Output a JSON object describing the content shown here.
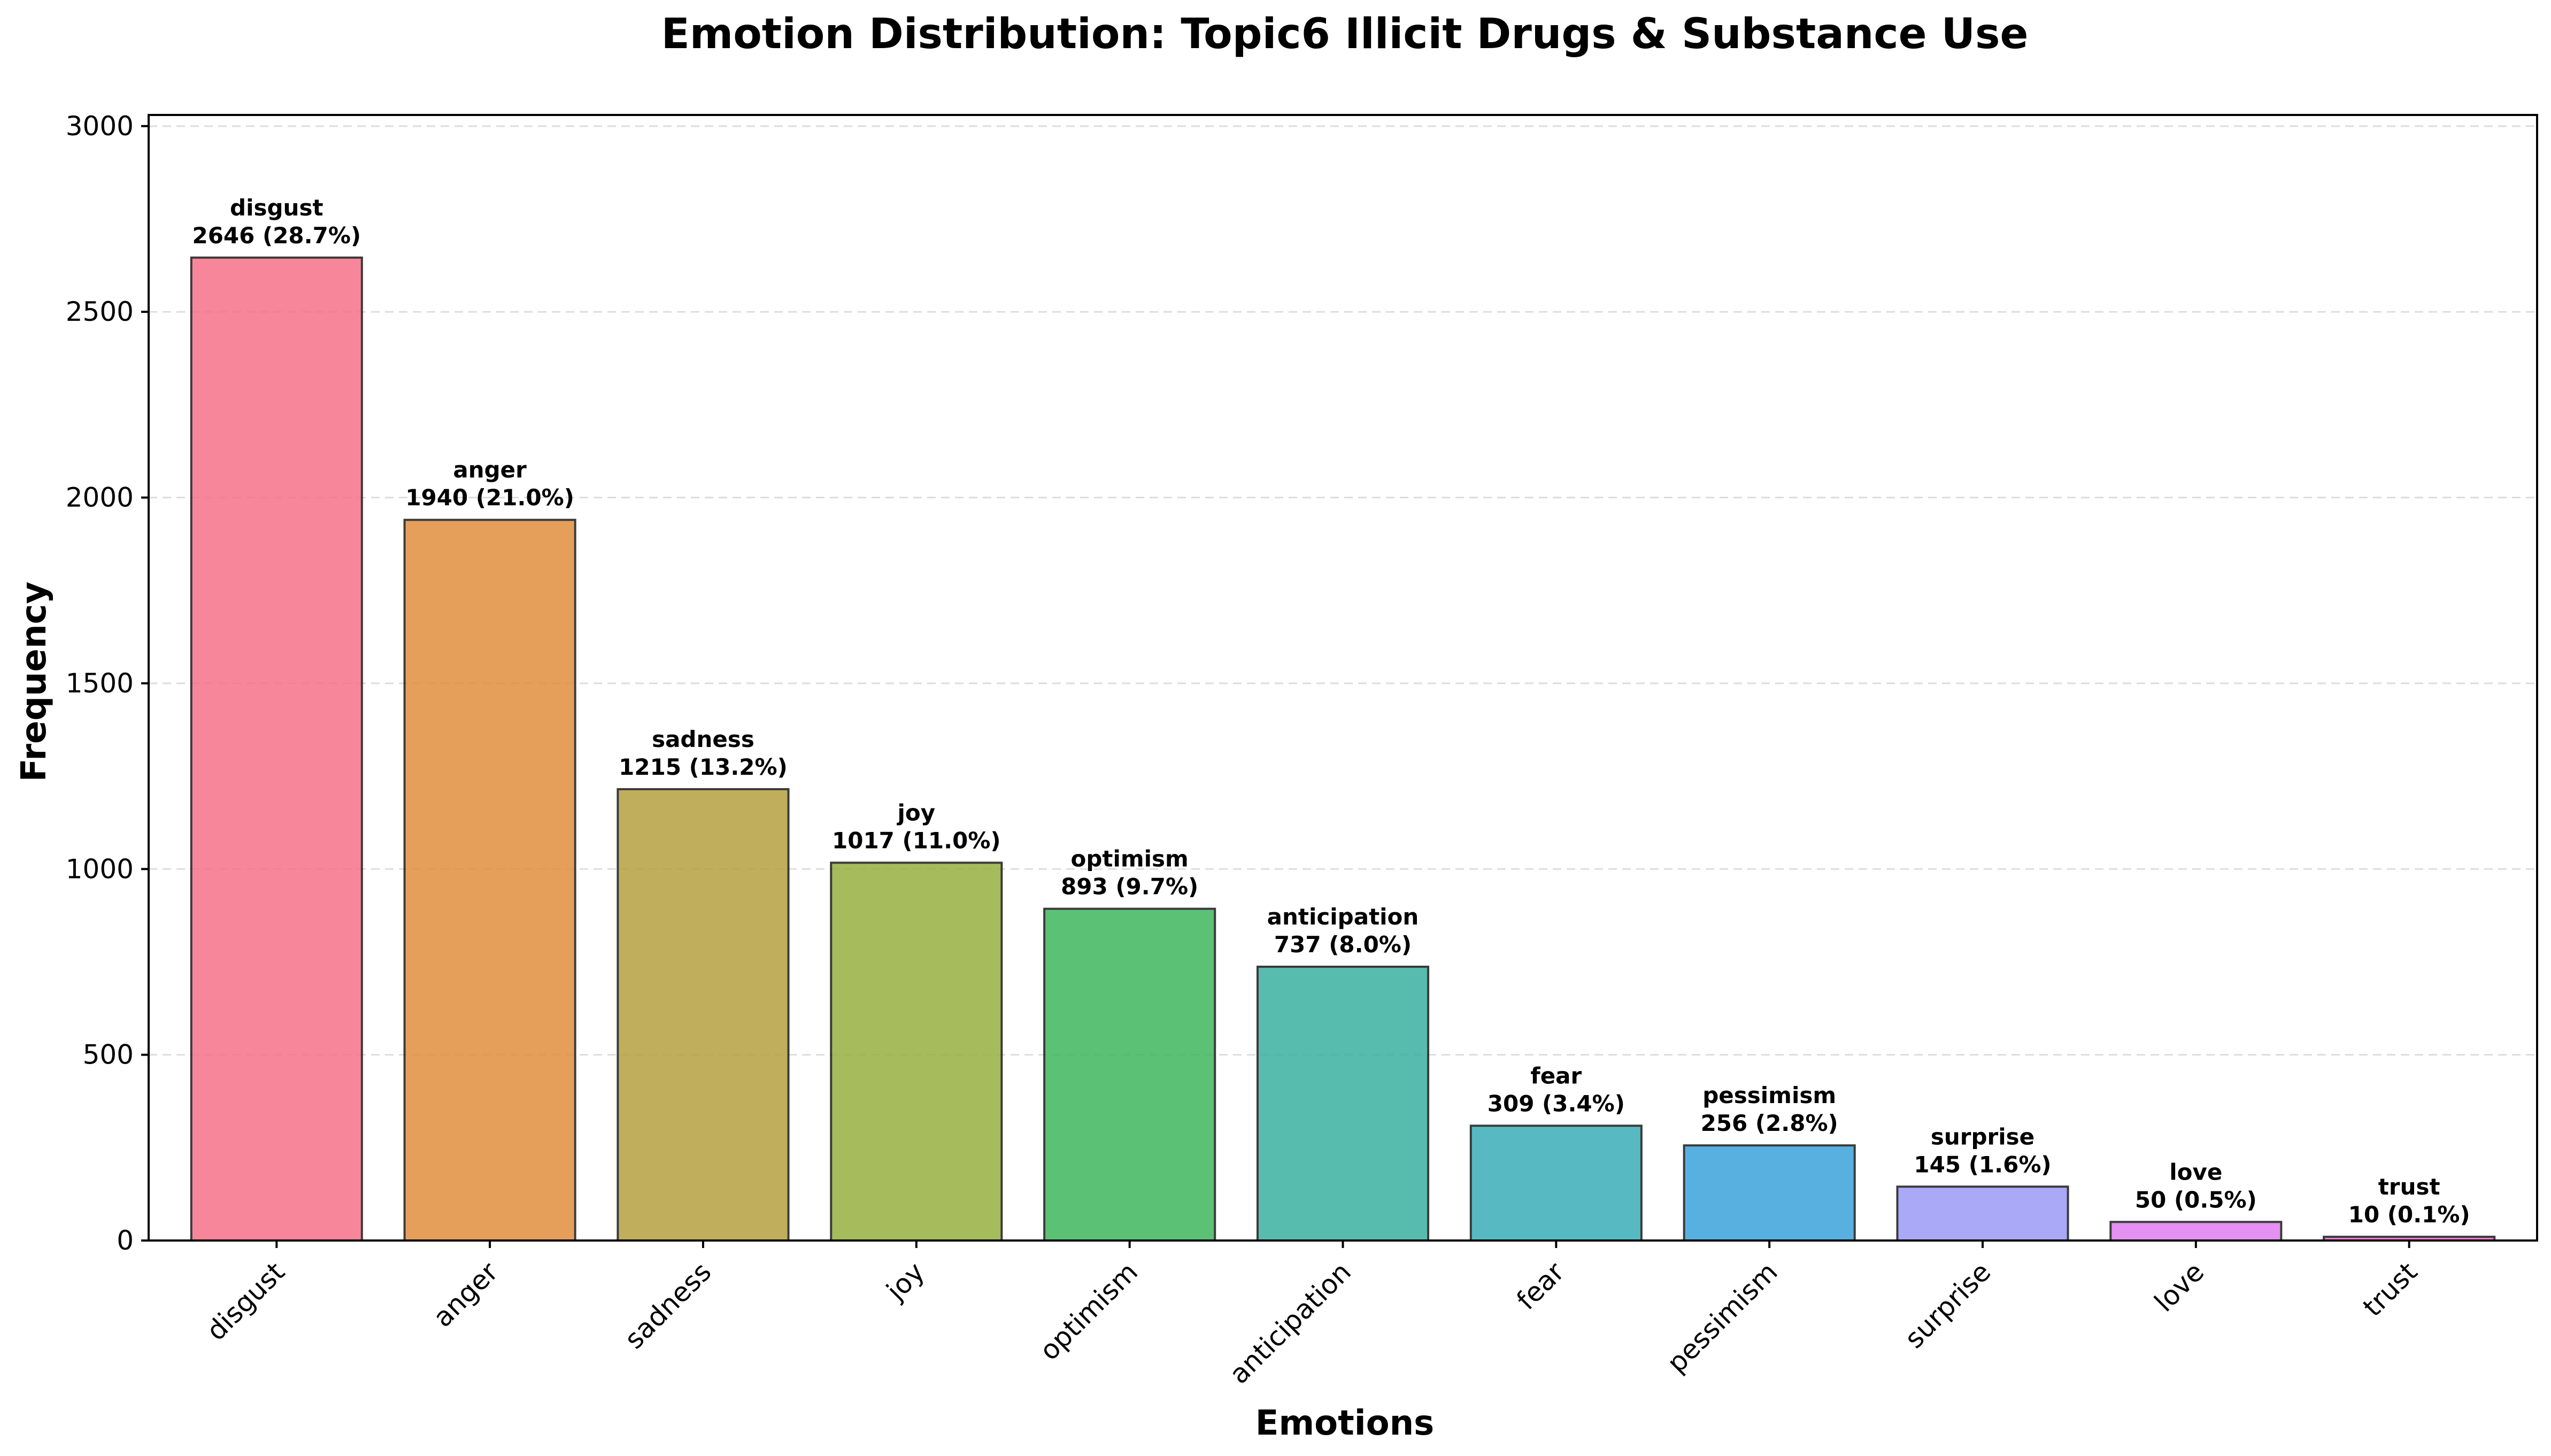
{
  "chart_data": {
    "type": "bar",
    "title": "Emotion Distribution: Topic6  Illicit Drugs & Substance Use",
    "xlabel": "Emotions",
    "ylabel": "Frequency",
    "ylim": [
      0,
      3030
    ],
    "yticks": [
      0,
      500,
      1000,
      1500,
      2000,
      2500,
      3000
    ],
    "grid": "y-dashed",
    "legend": "none",
    "categories": [
      "disgust",
      "anger",
      "sadness",
      "joy",
      "optimism",
      "anticipation",
      "fear",
      "pessimism",
      "surprise",
      "love",
      "trust"
    ],
    "values": [
      2646,
      1940,
      1215,
      1017,
      893,
      737,
      309,
      256,
      145,
      50,
      10
    ],
    "percentages": [
      "28.7%",
      "21.0%",
      "13.2%",
      "11.0%",
      "9.7%",
      "8.0%",
      "3.4%",
      "2.8%",
      "1.6%",
      "0.5%",
      "0.1%"
    ],
    "value_labels": [
      "2646 (28.7%)",
      "1940 (21.0%)",
      "1215 (13.2%)",
      "1017 (11.0%)",
      "893 (9.7%)",
      "737 (8.0%)",
      "309 (3.4%)",
      "256 (2.8%)",
      "145 (1.6%)",
      "50 (0.5%)",
      "10 (0.1%)"
    ],
    "colors": [
      "#f77189",
      "#e18f3f",
      "#b7a140",
      "#97b040",
      "#3fb85e",
      "#3ab09f",
      "#3aafb8",
      "#3ba3dc",
      "#9b9bf7",
      "#e07ef0",
      "#f565cb"
    ]
  }
}
